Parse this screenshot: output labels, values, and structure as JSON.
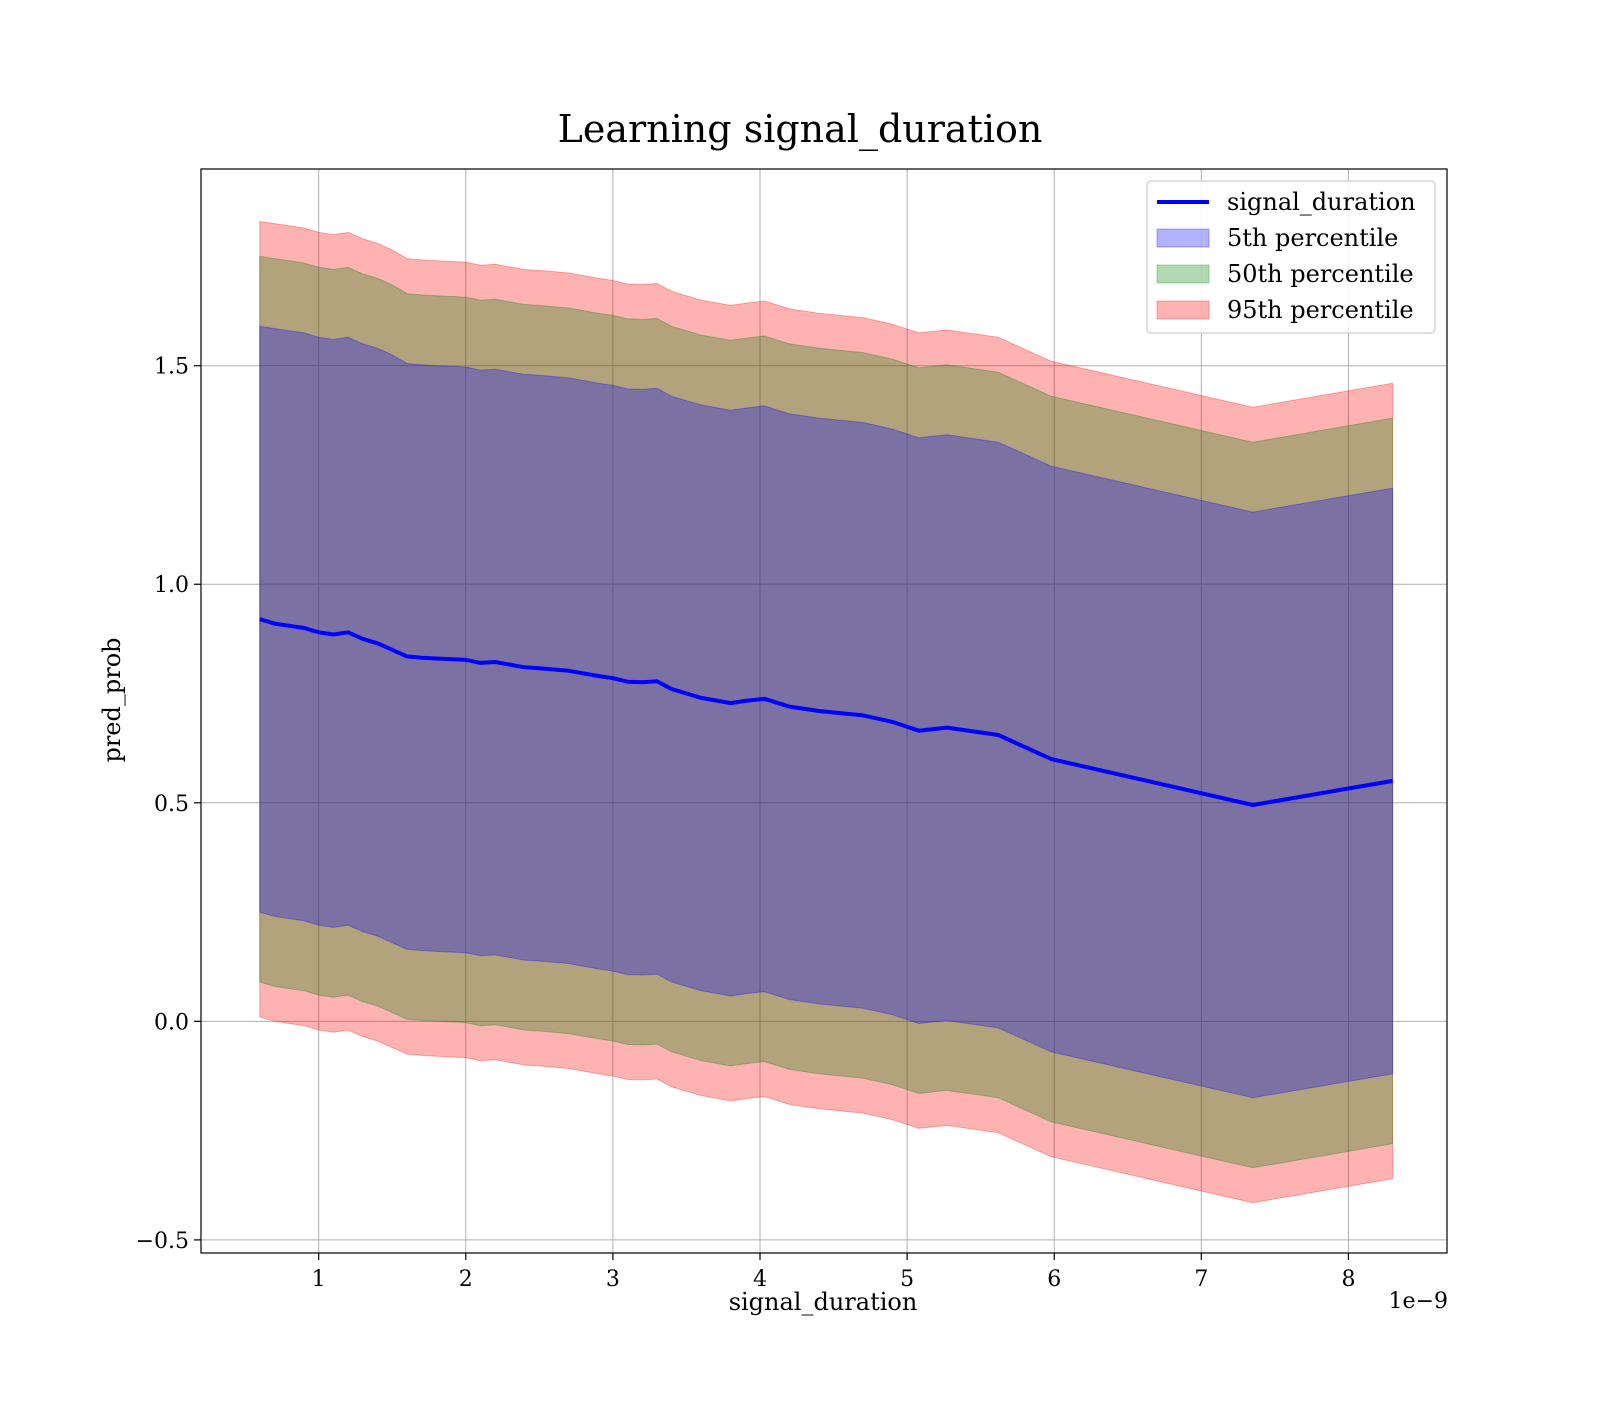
{
  "chart_data": {
    "type": "line",
    "title": "Learning signal_duration",
    "xlabel": "signal_duration",
    "ylabel": "pred_prob",
    "x_offset_text": "1e−9",
    "xlim": [
      0.2,
      8.67
    ],
    "ylim": [
      -0.53,
      1.95
    ],
    "x_ticks": [
      1,
      2,
      3,
      4,
      5,
      6,
      7,
      8
    ],
    "x_tick_labels": [
      "1",
      "2",
      "3",
      "4",
      "5",
      "6",
      "7",
      "8"
    ],
    "y_ticks": [
      -0.5,
      0.0,
      0.5,
      1.0,
      1.5
    ],
    "y_tick_labels": [
      "−0.5",
      "0.0",
      "0.5",
      "1.0",
      "1.5"
    ],
    "grid": true,
    "legend_position": "top-right",
    "x": [
      0.6,
      0.7,
      0.8,
      0.9,
      1.0,
      1.1,
      1.2,
      1.3,
      1.4,
      1.5,
      1.6,
      1.7,
      1.8,
      2.0,
      2.1,
      2.2,
      2.4,
      2.5,
      2.7,
      2.9,
      3.0,
      3.1,
      3.2,
      3.3,
      3.4,
      3.5,
      3.6,
      3.8,
      3.9,
      4.03,
      4.2,
      4.4,
      4.7,
      4.9,
      5.08,
      5.27,
      5.62,
      5.98,
      7.35,
      8.3
    ],
    "series": [
      {
        "name": "signal_duration",
        "kind": "line",
        "color": "#0000ff",
        "values": [
          0.92,
          0.91,
          0.905,
          0.9,
          0.89,
          0.885,
          0.89,
          0.875,
          0.865,
          0.85,
          0.835,
          0.832,
          0.83,
          0.827,
          0.82,
          0.822,
          0.81,
          0.808,
          0.802,
          0.79,
          0.785,
          0.777,
          0.776,
          0.778,
          0.76,
          0.75,
          0.74,
          0.728,
          0.733,
          0.738,
          0.72,
          0.71,
          0.7,
          0.685,
          0.665,
          0.672,
          0.655,
          0.6,
          0.495,
          0.55
        ]
      },
      {
        "name": "5th percentile",
        "kind": "band",
        "color": "#0000ff",
        "opacity": 0.3,
        "upper": [
          1.59,
          1.585,
          1.58,
          1.575,
          1.565,
          1.56,
          1.565,
          1.55,
          1.54,
          1.525,
          1.505,
          1.502,
          1.5,
          1.497,
          1.49,
          1.492,
          1.48,
          1.478,
          1.472,
          1.46,
          1.455,
          1.447,
          1.446,
          1.448,
          1.43,
          1.42,
          1.41,
          1.398,
          1.403,
          1.408,
          1.39,
          1.38,
          1.37,
          1.355,
          1.335,
          1.342,
          1.325,
          1.27,
          1.165,
          1.22
        ],
        "lower": [
          0.25,
          0.24,
          0.235,
          0.23,
          0.22,
          0.215,
          0.22,
          0.205,
          0.195,
          0.18,
          0.165,
          0.162,
          0.16,
          0.157,
          0.15,
          0.152,
          0.14,
          0.138,
          0.132,
          0.12,
          0.115,
          0.107,
          0.106,
          0.108,
          0.09,
          0.08,
          0.07,
          0.058,
          0.063,
          0.068,
          0.05,
          0.04,
          0.03,
          0.015,
          -0.005,
          0.002,
          -0.015,
          -0.07,
          -0.175,
          -0.12
        ]
      },
      {
        "name": "50th percentile",
        "kind": "band",
        "color": "#008000",
        "opacity": 0.3,
        "upper": [
          1.75,
          1.745,
          1.74,
          1.735,
          1.725,
          1.72,
          1.725,
          1.71,
          1.7,
          1.685,
          1.665,
          1.662,
          1.66,
          1.657,
          1.65,
          1.652,
          1.64,
          1.638,
          1.632,
          1.62,
          1.615,
          1.607,
          1.606,
          1.608,
          1.59,
          1.58,
          1.57,
          1.558,
          1.563,
          1.568,
          1.55,
          1.54,
          1.53,
          1.515,
          1.495,
          1.502,
          1.485,
          1.43,
          1.325,
          1.38
        ],
        "lower": [
          0.09,
          0.08,
          0.075,
          0.07,
          0.06,
          0.055,
          0.06,
          0.045,
          0.035,
          0.02,
          0.005,
          0.002,
          0.0,
          -0.003,
          -0.01,
          -0.008,
          -0.02,
          -0.022,
          -0.028,
          -0.04,
          -0.045,
          -0.053,
          -0.054,
          -0.052,
          -0.07,
          -0.08,
          -0.09,
          -0.102,
          -0.097,
          -0.092,
          -0.11,
          -0.12,
          -0.13,
          -0.145,
          -0.165,
          -0.158,
          -0.175,
          -0.23,
          -0.335,
          -0.28
        ]
      },
      {
        "name": "95th percentile",
        "kind": "band",
        "color": "#ff0000",
        "opacity": 0.3,
        "upper": [
          1.83,
          1.825,
          1.82,
          1.815,
          1.805,
          1.8,
          1.805,
          1.79,
          1.78,
          1.765,
          1.745,
          1.742,
          1.74,
          1.737,
          1.73,
          1.732,
          1.72,
          1.718,
          1.712,
          1.7,
          1.695,
          1.687,
          1.686,
          1.688,
          1.67,
          1.66,
          1.65,
          1.638,
          1.643,
          1.648,
          1.63,
          1.62,
          1.61,
          1.595,
          1.575,
          1.582,
          1.565,
          1.51,
          1.405,
          1.46
        ],
        "lower": [
          0.01,
          0.0,
          -0.005,
          -0.01,
          -0.02,
          -0.025,
          -0.02,
          -0.035,
          -0.045,
          -0.06,
          -0.075,
          -0.078,
          -0.08,
          -0.083,
          -0.09,
          -0.088,
          -0.1,
          -0.102,
          -0.108,
          -0.12,
          -0.125,
          -0.133,
          -0.134,
          -0.132,
          -0.15,
          -0.16,
          -0.17,
          -0.182,
          -0.177,
          -0.172,
          -0.19,
          -0.2,
          -0.21,
          -0.225,
          -0.245,
          -0.238,
          -0.255,
          -0.31,
          -0.415,
          -0.36
        ]
      }
    ]
  }
}
